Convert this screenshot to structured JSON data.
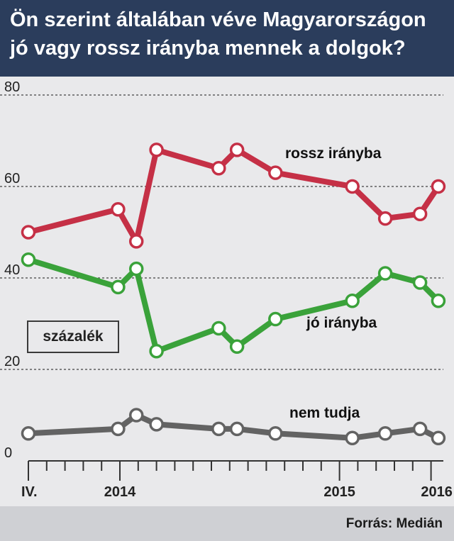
{
  "title_lines": [
    "Ön szerint általában véve Magyarországon",
    "jó vagy rossz irányba mennek a dolgok?"
  ],
  "unit_label": "százalék",
  "source": "Forrás: Medián",
  "colors": {
    "header_bg": "#2b3d5c",
    "rossz": "#c53046",
    "jo": "#3aa23a",
    "nem_tudja": "#636363"
  },
  "chart_data": {
    "type": "line",
    "title": "Ön szerint általában véve Magyarországon jó vagy rossz irányba mennek a dolgok?",
    "ylabel": "százalék",
    "ylim": [
      0,
      80
    ],
    "yticks": [
      0,
      20,
      40,
      60,
      80
    ],
    "grid": "horizontal dashed",
    "x_tick_labels": [
      "IV.",
      "2014",
      "2015",
      "2016"
    ],
    "x": [
      0,
      4.9,
      5.9,
      7,
      10.4,
      11.4,
      13.5,
      17.7,
      19.5,
      21.4,
      22.4
    ],
    "series": [
      {
        "name": "rossz irányba",
        "values": [
          50,
          55,
          48,
          68,
          64,
          68,
          63,
          60,
          53,
          54,
          60
        ]
      },
      {
        "name": "jó irányba",
        "values": [
          44,
          38,
          42,
          24,
          29,
          25,
          31,
          35,
          41,
          39,
          35
        ]
      },
      {
        "name": "nem tudja",
        "values": [
          6,
          7,
          10,
          8,
          7,
          7,
          6,
          5,
          6,
          7,
          5
        ]
      }
    ]
  }
}
